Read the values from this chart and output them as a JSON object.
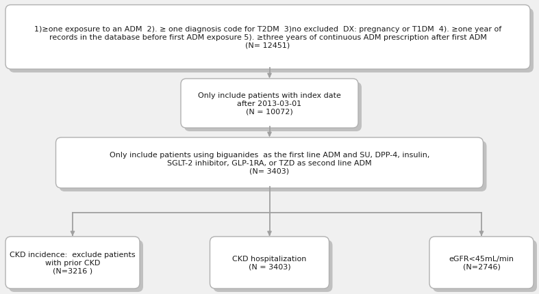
{
  "bg_color": "#f0f0f0",
  "box_fill": "#ffffff",
  "box_edge": "#b0b0b0",
  "shadow_color": "#c0c0c0",
  "line_color": "#a0a0a0",
  "text_color": "#1a1a1a",
  "box1_text": "1)≥one exposure to an ADM  2). ≥ one diagnosis code for T2DM  3)no excluded  DX: pregnancy or T1DM  4). ≥one year of\nrecords in the database before first ADM exposure 5). ≥three years of continuous ADM prescription after first ADM\n(N= 12451)",
  "box2_text": "Only include patients with index date\nafter 2013-03-01\n(N = 10072)",
  "box3_text": "Only include patients using biguanides  as the first line ADM and SU, DPP-4, insulin,\nSGLT-2 inhibitor, GLP-1RA, or TZD as second line ADM\n(N= 3403)",
  "box4_text": "CKD incidence:  exclude patients\nwith prior CKD\n(N=3216 )",
  "box5_text": "CKD hospitalization\n(N = 3403)",
  "box6_text": "eGFR<45mL/min\n(N=2746)",
  "font_size": 8.0,
  "fig_w": 7.87,
  "fig_h": 4.31,
  "dpi": 100
}
